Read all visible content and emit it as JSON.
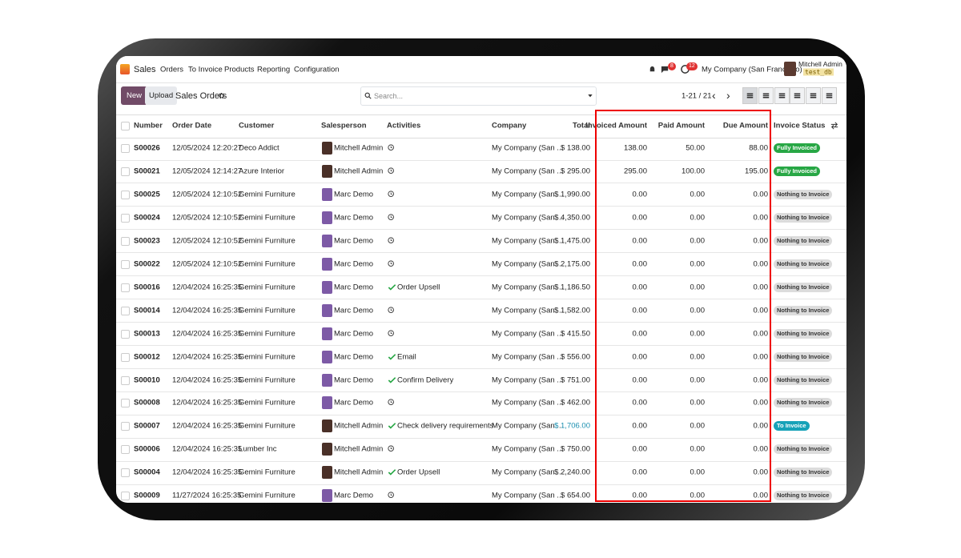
{
  "navbar": {
    "app": "Sales",
    "menus": [
      "Orders",
      "To Invoice",
      "Products",
      "Reporting",
      "Configuration"
    ],
    "badges": [
      "8",
      "12"
    ],
    "company": "My Company (San Francisco)",
    "user": "Mitchell Admin",
    "db": "test_db"
  },
  "control": {
    "new": "New",
    "upload": "Upload",
    "title": "Sales Orders",
    "search": "Search...",
    "pager": "1-21 / 21"
  },
  "table": {
    "columns": [
      "Number",
      "Order Date",
      "Customer",
      "Salesperson",
      "Activities",
      "Company",
      "Total",
      "Invoiced Amount",
      "Paid Amount",
      "Due Amount",
      "Invoice Status"
    ],
    "rows": [
      {
        "number": "S00026",
        "date": "12/05/2024 12:20:27",
        "customer": "Deco Addict",
        "salesperson": "Mitchell Admin",
        "company": "My Company (San ...",
        "total": "$ 138.00",
        "invoiced": "138.00",
        "paid": "50.00",
        "due": "88.00",
        "status": "Fully Invoiced",
        "status_color": "#28a745"
      },
      {
        "number": "S00021",
        "date": "12/05/2024 12:14:27",
        "customer": "Azure Interior",
        "salesperson": "Mitchell Admin",
        "company": "My Company (San ...",
        "total": "$ 295.00",
        "invoiced": "295.00",
        "paid": "100.00",
        "due": "195.00",
        "status": "Fully Invoiced",
        "status_color": "#28a745"
      },
      {
        "number": "S00025",
        "date": "12/05/2024 12:10:52",
        "customer": "Gemini Furniture",
        "salesperson": "Marc Demo",
        "company": "My Company (San ...",
        "total": "$ 1,990.00",
        "invoiced": "0.00",
        "paid": "0.00",
        "due": "0.00",
        "status": "Nothing to Invoice",
        "status_color": "#dcdcdc"
      },
      {
        "number": "S00024",
        "date": "12/05/2024 12:10:52",
        "customer": "Gemini Furniture",
        "salesperson": "Marc Demo",
        "company": "My Company (San ...",
        "total": "$ 4,350.00",
        "invoiced": "0.00",
        "paid": "0.00",
        "due": "0.00",
        "status": "Nothing to Invoice",
        "status_color": "#dcdcdc"
      },
      {
        "number": "S00023",
        "date": "12/05/2024 12:10:52",
        "customer": "Gemini Furniture",
        "salesperson": "Marc Demo",
        "company": "My Company (San ...",
        "total": "$ 1,475.00",
        "invoiced": "0.00",
        "paid": "0.00",
        "due": "0.00",
        "status": "Nothing to Invoice",
        "status_color": "#dcdcdc"
      },
      {
        "number": "S00022",
        "date": "12/05/2024 12:10:52",
        "customer": "Gemini Furniture",
        "salesperson": "Marc Demo",
        "company": "My Company (San ...",
        "total": "$ 2,175.00",
        "invoiced": "0.00",
        "paid": "0.00",
        "due": "0.00",
        "status": "Nothing to Invoice",
        "status_color": "#dcdcdc"
      },
      {
        "number": "S00016",
        "date": "12/04/2024 16:25:35",
        "customer": "Gemini Furniture",
        "salesperson": "Marc Demo",
        "activity": "Order Upsell",
        "company": "My Company (San ...",
        "total": "$ 1,186.50",
        "invoiced": "0.00",
        "paid": "0.00",
        "due": "0.00",
        "status": "Nothing to Invoice",
        "status_color": "#dcdcdc"
      },
      {
        "number": "S00014",
        "date": "12/04/2024 16:25:35",
        "customer": "Gemini Furniture",
        "salesperson": "Marc Demo",
        "company": "My Company (San ...",
        "total": "$ 1,582.00",
        "invoiced": "0.00",
        "paid": "0.00",
        "due": "0.00",
        "status": "Nothing to Invoice",
        "status_color": "#dcdcdc"
      },
      {
        "number": "S00013",
        "date": "12/04/2024 16:25:35",
        "customer": "Gemini Furniture",
        "salesperson": "Marc Demo",
        "company": "My Company (San ...",
        "total": "$ 415.50",
        "invoiced": "0.00",
        "paid": "0.00",
        "due": "0.00",
        "status": "Nothing to Invoice",
        "status_color": "#dcdcdc"
      },
      {
        "number": "S00012",
        "date": "12/04/2024 16:25:35",
        "customer": "Gemini Furniture",
        "salesperson": "Marc Demo",
        "activity": "Email",
        "company": "My Company (San ...",
        "total": "$ 556.00",
        "invoiced": "0.00",
        "paid": "0.00",
        "due": "0.00",
        "status": "Nothing to Invoice",
        "status_color": "#dcdcdc"
      },
      {
        "number": "S00010",
        "date": "12/04/2024 16:25:35",
        "customer": "Gemini Furniture",
        "salesperson": "Marc Demo",
        "activity": "Confirm Delivery",
        "company": "My Company (San ...",
        "total": "$ 751.00",
        "invoiced": "0.00",
        "paid": "0.00",
        "due": "0.00",
        "status": "Nothing to Invoice",
        "status_color": "#dcdcdc"
      },
      {
        "number": "S00008",
        "date": "12/04/2024 16:25:35",
        "customer": "Gemini Furniture",
        "salesperson": "Marc Demo",
        "company": "My Company (San ...",
        "total": "$ 462.00",
        "invoiced": "0.00",
        "paid": "0.00",
        "due": "0.00",
        "status": "Nothing to Invoice",
        "status_color": "#dcdcdc"
      },
      {
        "number": "S00007",
        "date": "12/04/2024 16:25:35",
        "customer": "Gemini Furniture",
        "salesperson": "Mitchell Admin",
        "activity": "Check delivery requirements",
        "company": "My Company (San ...",
        "total": "$ 1,706.00",
        "total_color": "#1a8fb0",
        "invoiced": "0.00",
        "paid": "0.00",
        "due": "0.00",
        "status": "To Invoice",
        "status_color": "#17a2b8"
      },
      {
        "number": "S00006",
        "date": "12/04/2024 16:25:35",
        "customer": "Lumber Inc",
        "salesperson": "Mitchell Admin",
        "company": "My Company (San ...",
        "total": "$ 750.00",
        "invoiced": "0.00",
        "paid": "0.00",
        "due": "0.00",
        "status": "Nothing to Invoice",
        "status_color": "#dcdcdc"
      },
      {
        "number": "S00004",
        "date": "12/04/2024 16:25:35",
        "customer": "Gemini Furniture",
        "salesperson": "Mitchell Admin",
        "activity": "Order Upsell",
        "company": "My Company (San ...",
        "total": "$ 2,240.00",
        "invoiced": "0.00",
        "paid": "0.00",
        "due": "0.00",
        "status": "Nothing to Invoice",
        "status_color": "#dcdcdc"
      },
      {
        "number": "S00009",
        "date": "11/27/2024 16:25:35",
        "customer": "Gemini Furniture",
        "salesperson": "Marc Demo",
        "company": "My Company (San ...",
        "total": "$ 654.00",
        "invoiced": "0.00",
        "paid": "0.00",
        "due": "0.00",
        "status": "Nothing to Invoice",
        "status_color": "#dcdcdc"
      }
    ]
  }
}
